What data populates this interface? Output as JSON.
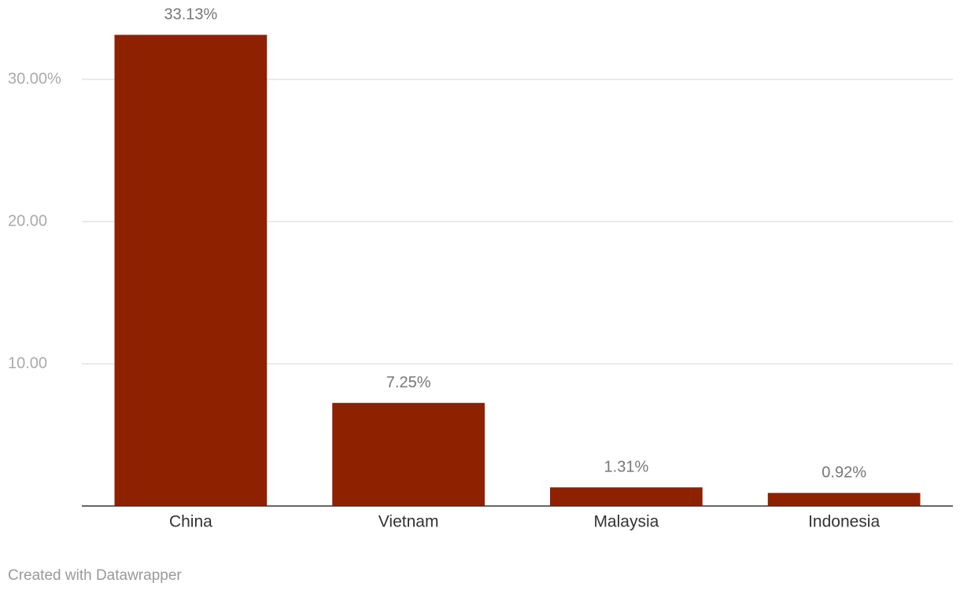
{
  "chart_data": {
    "type": "bar",
    "categories": [
      "China",
      "Vietnam",
      "Malaysia",
      "Indonesia"
    ],
    "values": [
      33.13,
      7.25,
      1.31,
      0.92
    ],
    "value_labels": [
      "33.13%",
      "7.25%",
      "1.31%",
      "0.92%"
    ],
    "color": "#8e2100",
    "ylim": [
      0,
      35
    ],
    "yticks": [
      {
        "value": 10,
        "label": "10.00"
      },
      {
        "value": 20,
        "label": "20.00"
      },
      {
        "value": 30,
        "label": "30.00%"
      }
    ],
    "grid": true,
    "footer": "Created with Datawrapper"
  }
}
